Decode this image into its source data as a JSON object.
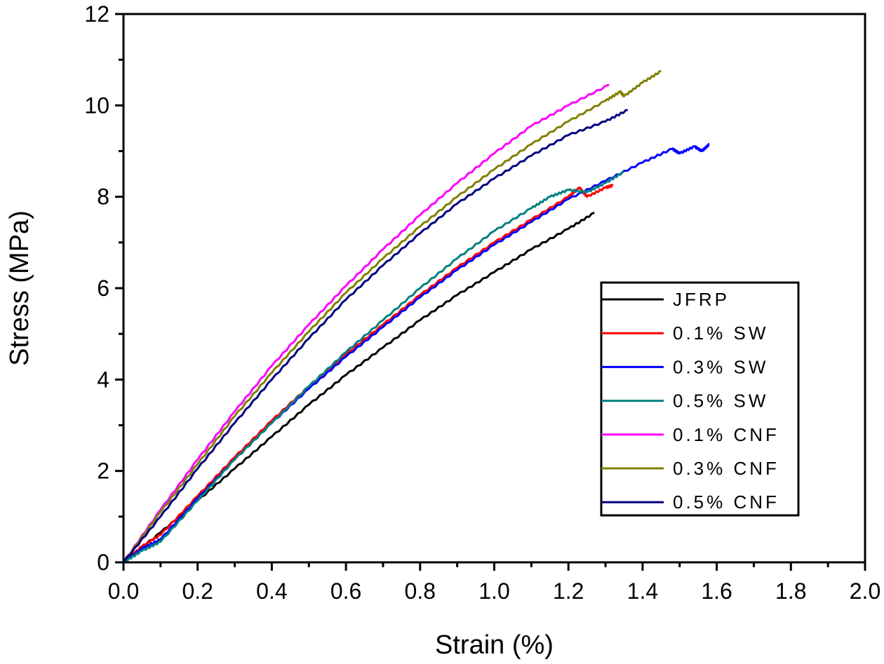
{
  "chart_data": {
    "type": "line",
    "title": "",
    "xlabel": "Strain (%)",
    "ylabel": "Stress (MPa)",
    "xlim": [
      0.0,
      2.0
    ],
    "ylim": [
      0,
      12
    ],
    "xticks": [
      "0.0",
      "0.2",
      "0.4",
      "0.6",
      "0.8",
      "1.0",
      "1.2",
      "1.4",
      "1.6",
      "1.8",
      "2.0"
    ],
    "xtick_values": [
      0.0,
      0.2,
      0.4,
      0.6,
      0.8,
      1.0,
      1.2,
      1.4,
      1.6,
      1.8,
      2.0
    ],
    "yticks": [
      "0",
      "2",
      "4",
      "6",
      "8",
      "10",
      "12"
    ],
    "ytick_values": [
      0,
      2,
      4,
      6,
      8,
      10,
      12
    ],
    "grid": false,
    "legend_position": "center-right",
    "series": [
      {
        "name": "JFRP",
        "color": "#000000",
        "x": [
          0.0,
          0.1,
          0.2,
          0.3,
          0.4,
          0.5,
          0.6,
          0.7,
          0.8,
          0.9,
          1.0,
          1.1,
          1.2,
          1.27
        ],
        "y": [
          0.0,
          0.65,
          1.35,
          2.05,
          2.75,
          3.45,
          4.1,
          4.7,
          5.3,
          5.85,
          6.35,
          6.85,
          7.3,
          7.65
        ]
      },
      {
        "name": "0.1% SW",
        "color": "#ff0000",
        "x": [
          0.0,
          0.05,
          0.1,
          0.2,
          0.3,
          0.4,
          0.5,
          0.6,
          0.7,
          0.8,
          0.9,
          1.0,
          1.1,
          1.2,
          1.23,
          1.25,
          1.3,
          1.32
        ],
        "y": [
          0.0,
          0.35,
          0.6,
          1.45,
          2.3,
          3.1,
          3.85,
          4.55,
          5.2,
          5.85,
          6.45,
          7.0,
          7.5,
          8.0,
          8.2,
          8.0,
          8.2,
          8.25
        ]
      },
      {
        "name": "0.3% SW",
        "color": "#0000ff",
        "x": [
          0.0,
          0.05,
          0.1,
          0.2,
          0.3,
          0.4,
          0.5,
          0.6,
          0.7,
          0.8,
          0.9,
          1.0,
          1.1,
          1.2,
          1.3,
          1.4,
          1.48,
          1.5,
          1.54,
          1.56,
          1.58
        ],
        "y": [
          0.0,
          0.3,
          0.5,
          1.4,
          2.25,
          3.05,
          3.8,
          4.5,
          5.15,
          5.8,
          6.4,
          6.95,
          7.45,
          7.95,
          8.35,
          8.75,
          9.05,
          8.95,
          9.1,
          9.0,
          9.15
        ]
      },
      {
        "name": "0.5% SW",
        "color": "#008080",
        "x": [
          0.0,
          0.05,
          0.1,
          0.2,
          0.3,
          0.4,
          0.5,
          0.6,
          0.7,
          0.8,
          0.9,
          1.0,
          1.1,
          1.15,
          1.2,
          1.25,
          1.3,
          1.35
        ],
        "y": [
          0.0,
          0.25,
          0.45,
          1.35,
          2.25,
          3.05,
          3.85,
          4.6,
          5.3,
          6.0,
          6.65,
          7.25,
          7.75,
          8.0,
          8.15,
          8.1,
          8.3,
          8.55
        ]
      },
      {
        "name": "0.1% CNF",
        "color": "#ff00ff",
        "x": [
          0.0,
          0.1,
          0.2,
          0.3,
          0.4,
          0.5,
          0.6,
          0.7,
          0.8,
          0.9,
          1.0,
          1.1,
          1.2,
          1.31
        ],
        "y": [
          0.0,
          1.15,
          2.25,
          3.3,
          4.3,
          5.2,
          6.05,
          6.85,
          7.6,
          8.3,
          8.95,
          9.55,
          10.0,
          10.45
        ]
      },
      {
        "name": "0.3% CNF",
        "color": "#808000",
        "x": [
          0.0,
          0.1,
          0.2,
          0.3,
          0.4,
          0.5,
          0.6,
          0.7,
          0.8,
          0.9,
          1.0,
          1.1,
          1.2,
          1.3,
          1.34,
          1.35,
          1.4,
          1.45
        ],
        "y": [
          0.0,
          1.1,
          2.15,
          3.2,
          4.15,
          5.05,
          5.9,
          6.65,
          7.35,
          8.0,
          8.6,
          9.15,
          9.65,
          10.1,
          10.3,
          10.2,
          10.5,
          10.75
        ]
      },
      {
        "name": "0.5% CNF",
        "color": "#000080",
        "x": [
          0.0,
          0.1,
          0.2,
          0.3,
          0.4,
          0.5,
          0.6,
          0.7,
          0.8,
          0.9,
          1.0,
          1.1,
          1.2,
          1.3,
          1.36
        ],
        "y": [
          0.0,
          1.0,
          2.05,
          3.05,
          4.0,
          4.9,
          5.75,
          6.5,
          7.2,
          7.85,
          8.4,
          8.9,
          9.35,
          9.65,
          9.9
        ]
      }
    ]
  }
}
